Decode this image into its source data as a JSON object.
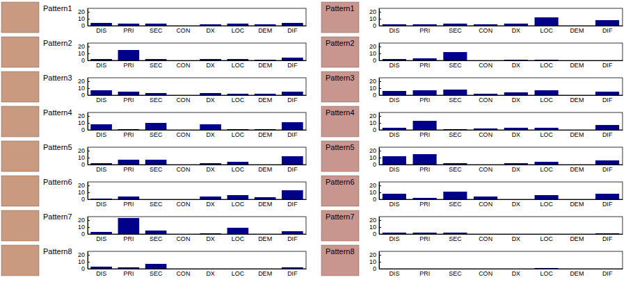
{
  "chart_data": [
    {
      "type": "bar",
      "title": "Pattern1",
      "categories": [
        "DIS",
        "PRI",
        "SEC",
        "CON",
        "DX",
        "LOC",
        "DEM",
        "DIF"
      ],
      "values": [
        4,
        3,
        3,
        0,
        2,
        3,
        2,
        4
      ],
      "color": "#00008b",
      "ylim": [
        0,
        25
      ],
      "yticks": [
        0,
        10,
        20
      ]
    },
    {
      "type": "bar",
      "title": "Pattern2",
      "categories": [
        "DIS",
        "PRI",
        "SEC",
        "CON",
        "DX",
        "LOC",
        "DEM",
        "DIF"
      ],
      "values": [
        2,
        15,
        2,
        0,
        2,
        2,
        1,
        4
      ],
      "color": "#00008b",
      "ylim": [
        0,
        25
      ],
      "yticks": [
        0,
        10,
        20
      ]
    },
    {
      "type": "bar",
      "title": "Pattern3",
      "categories": [
        "DIS",
        "PRI",
        "SEC",
        "CON",
        "DX",
        "LOC",
        "DEM",
        "DIF"
      ],
      "values": [
        7,
        5,
        3,
        0,
        3,
        2,
        2,
        5
      ],
      "color": "#00008b",
      "ylim": [
        0,
        25
      ],
      "yticks": [
        0,
        10,
        20
      ]
    },
    {
      "type": "bar",
      "title": "Pattern4",
      "categories": [
        "DIS",
        "PRI",
        "SEC",
        "CON",
        "DX",
        "LOC",
        "DEM",
        "DIF"
      ],
      "values": [
        8,
        1,
        10,
        0,
        8,
        1,
        1,
        11
      ],
      "color": "#00008b",
      "ylim": [
        0,
        25
      ],
      "yticks": [
        0,
        10,
        20
      ]
    },
    {
      "type": "bar",
      "title": "Pattern5",
      "categories": [
        "DIS",
        "PRI",
        "SEC",
        "CON",
        "DX",
        "LOC",
        "DEM",
        "DIF"
      ],
      "values": [
        2,
        7,
        7,
        0,
        2,
        4,
        0,
        12
      ],
      "color": "#00008b",
      "ylim": [
        0,
        25
      ],
      "yticks": [
        0,
        10,
        20
      ]
    },
    {
      "type": "bar",
      "title": "Pattern6",
      "categories": [
        "DIS",
        "PRI",
        "SEC",
        "CON",
        "DX",
        "LOC",
        "DEM",
        "DIF"
      ],
      "values": [
        1,
        4,
        0,
        0,
        4,
        6,
        3,
        13
      ],
      "color": "#00008b",
      "ylim": [
        0,
        25
      ],
      "yticks": [
        0,
        10,
        20
      ]
    },
    {
      "type": "bar",
      "title": "Pattern7",
      "categories": [
        "DIS",
        "PRI",
        "SEC",
        "CON",
        "DX",
        "LOC",
        "DEM",
        "DIF"
      ],
      "values": [
        3,
        23,
        5,
        0,
        1,
        9,
        0,
        4
      ],
      "color": "#00008b",
      "ylim": [
        0,
        25
      ],
      "yticks": [
        0,
        10,
        20
      ]
    },
    {
      "type": "bar",
      "title": "Pattern8",
      "categories": [
        "DIS",
        "PRI",
        "SEC",
        "CON",
        "DX",
        "LOC",
        "DEM",
        "DIF"
      ],
      "values": [
        3,
        2,
        7,
        0,
        0,
        0,
        0,
        2
      ],
      "color": "#00008b",
      "ylim": [
        0,
        25
      ],
      "yticks": [
        0,
        10,
        20
      ]
    },
    {
      "type": "bar",
      "title": "Pattern1",
      "categories": [
        "DIS",
        "PRI",
        "SEC",
        "CON",
        "DX",
        "LOC",
        "DEM",
        "DIF"
      ],
      "values": [
        2,
        2,
        3,
        2,
        3,
        12,
        0,
        8
      ],
      "color": "#00008b",
      "ylim": [
        0,
        25
      ],
      "yticks": [
        0,
        10,
        20
      ]
    },
    {
      "type": "bar",
      "title": "Pattern2",
      "categories": [
        "DIS",
        "PRI",
        "SEC",
        "CON",
        "DX",
        "LOC",
        "DEM",
        "DIF"
      ],
      "values": [
        2,
        3,
        12,
        0,
        1,
        1,
        0,
        0
      ],
      "color": "#00008b",
      "ylim": [
        0,
        25
      ],
      "yticks": [
        0,
        10,
        20
      ]
    },
    {
      "type": "bar",
      "title": "Pattern3",
      "categories": [
        "DIS",
        "PRI",
        "SEC",
        "CON",
        "DX",
        "LOC",
        "DEM",
        "DIF"
      ],
      "values": [
        6,
        7,
        8,
        2,
        4,
        7,
        0,
        5
      ],
      "color": "#00008b",
      "ylim": [
        0,
        25
      ],
      "yticks": [
        0,
        10,
        20
      ]
    },
    {
      "type": "bar",
      "title": "Pattern4",
      "categories": [
        "DIS",
        "PRI",
        "SEC",
        "CON",
        "DX",
        "LOC",
        "DEM",
        "DIF"
      ],
      "values": [
        3,
        13,
        1,
        2,
        3,
        3,
        0,
        7
      ],
      "color": "#00008b",
      "ylim": [
        0,
        25
      ],
      "yticks": [
        0,
        10,
        20
      ]
    },
    {
      "type": "bar",
      "title": "Pattern5",
      "categories": [
        "DIS",
        "PRI",
        "SEC",
        "CON",
        "DX",
        "LOC",
        "DEM",
        "DIF"
      ],
      "values": [
        12,
        15,
        2,
        0,
        2,
        4,
        0,
        6
      ],
      "color": "#00008b",
      "ylim": [
        0,
        25
      ],
      "yticks": [
        0,
        10,
        20
      ]
    },
    {
      "type": "bar",
      "title": "Pattern6",
      "categories": [
        "DIS",
        "PRI",
        "SEC",
        "CON",
        "DX",
        "LOC",
        "DEM",
        "DIF"
      ],
      "values": [
        8,
        2,
        11,
        4,
        0,
        6,
        0,
        8
      ],
      "color": "#00008b",
      "ylim": [
        0,
        25
      ],
      "yticks": [
        0,
        10,
        20
      ]
    },
    {
      "type": "bar",
      "title": "Pattern7",
      "categories": [
        "DIS",
        "PRI",
        "SEC",
        "CON",
        "DX",
        "LOC",
        "DEM",
        "DIF"
      ],
      "values": [
        2,
        2,
        2,
        0,
        0,
        0,
        0,
        1
      ],
      "color": "#00008b",
      "ylim": [
        0,
        25
      ],
      "yticks": [
        0,
        10,
        20
      ]
    },
    {
      "type": "bar",
      "title": "Pattern8",
      "categories": [
        "DIS",
        "PRI",
        "SEC",
        "CON",
        "DX",
        "LOC",
        "DEM",
        "DIF"
      ],
      "values": [
        0,
        0,
        0,
        0,
        0,
        1,
        0,
        0
      ],
      "color": "#00008b",
      "ylim": [
        0,
        25
      ],
      "yticks": [
        0,
        10,
        20
      ]
    }
  ]
}
